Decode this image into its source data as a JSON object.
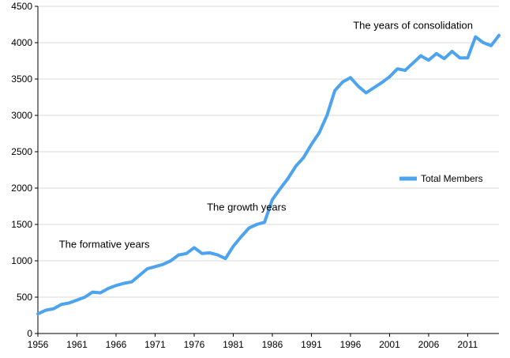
{
  "chart_data": {
    "type": "line",
    "title": "",
    "xlabel": "",
    "ylabel": "",
    "xlim": [
      1956,
      2015
    ],
    "ylim": [
      0,
      4500
    ],
    "grid": true,
    "legend_position": "right",
    "x_ticks": [
      1956,
      1961,
      1966,
      1971,
      1976,
      1981,
      1986,
      1991,
      1996,
      2001,
      2006,
      2011
    ],
    "y_ticks": [
      0,
      500,
      1000,
      1500,
      2000,
      2500,
      3000,
      3500,
      4000,
      4500
    ],
    "series": [
      {
        "name": "Total Members",
        "color": "#4da3ee",
        "x": [
          1956,
          1957,
          1958,
          1959,
          1960,
          1961,
          1962,
          1963,
          1964,
          1965,
          1966,
          1967,
          1968,
          1969,
          1970,
          1971,
          1972,
          1973,
          1974,
          1975,
          1976,
          1977,
          1978,
          1979,
          1980,
          1981,
          1982,
          1983,
          1984,
          1985,
          1986,
          1987,
          1988,
          1989,
          1990,
          1991,
          1992,
          1993,
          1994,
          1995,
          1996,
          1997,
          1998,
          1999,
          2000,
          2001,
          2002,
          2003,
          2004,
          2005,
          2006,
          2007,
          2008,
          2009,
          2010,
          2011,
          2012,
          2013,
          2014,
          2015
        ],
        "values": [
          270,
          320,
          340,
          400,
          420,
          460,
          500,
          570,
          560,
          620,
          660,
          690,
          710,
          800,
          890,
          920,
          950,
          1000,
          1080,
          1100,
          1180,
          1100,
          1110,
          1080,
          1030,
          1200,
          1330,
          1450,
          1500,
          1530,
          1840,
          1990,
          2130,
          2300,
          2420,
          2600,
          2760,
          3000,
          3340,
          3460,
          3520,
          3400,
          3310,
          3380,
          3450,
          3530,
          3640,
          3620,
          3720,
          3820,
          3760,
          3850,
          3780,
          3880,
          3790,
          3790,
          4080,
          4000,
          3960,
          4100
        ]
      }
    ],
    "annotations": [
      {
        "text": "The formative years",
        "x": 1964.5,
        "y": 1180
      },
      {
        "text": "The growth years",
        "x": 1982.7,
        "y": 1690
      },
      {
        "text": "The years of consolidation",
        "x": 2004,
        "y": 4190
      }
    ]
  }
}
